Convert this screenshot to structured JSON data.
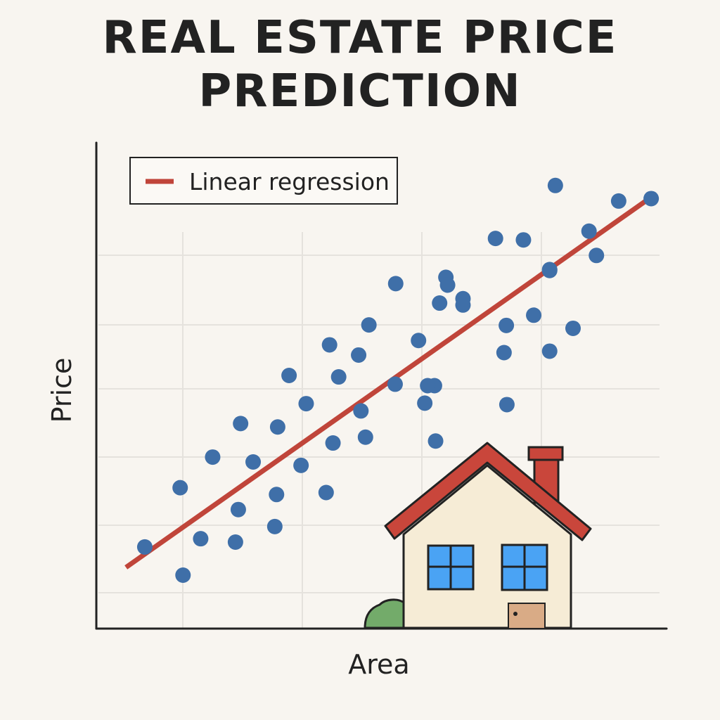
{
  "title": {
    "line1": "REAL ESTATE PRICE",
    "line2": "PREDICTION"
  },
  "chart_data": {
    "type": "scatter",
    "xlabel": "Area",
    "ylabel": "Price",
    "grid": true,
    "legend_position": "top-left",
    "legend": [
      "Linear regression"
    ],
    "colors": {
      "points": "#3f6fa8",
      "regression": "#c0453a",
      "grid": "#e5e2dd",
      "axis": "#222222",
      "house_wall": "#f6ecd6",
      "house_roof": "#c9463b",
      "house_window": "#4aa3f4",
      "house_door": "#d9ab86",
      "bush": "#73ab6a"
    },
    "xlim": [
      0,
      100
    ],
    "ylim": [
      0,
      100
    ],
    "series": [
      {
        "type": "scatter",
        "points": [
          [
            8.5,
            16.8
          ],
          [
            15.2,
            11.0
          ],
          [
            14.7,
            29.0
          ],
          [
            18.3,
            18.5
          ],
          [
            20.4,
            35.3
          ],
          [
            24.4,
            17.8
          ],
          [
            24.9,
            24.5
          ],
          [
            25.3,
            42.2
          ],
          [
            27.5,
            34.3
          ],
          [
            31.3,
            21.0
          ],
          [
            31.6,
            27.6
          ],
          [
            31.8,
            41.5
          ],
          [
            33.8,
            52.1
          ],
          [
            35.9,
            33.6
          ],
          [
            36.8,
            46.3
          ],
          [
            40.3,
            28.0
          ],
          [
            40.9,
            58.4
          ],
          [
            41.5,
            38.2
          ],
          [
            42.5,
            51.8
          ],
          [
            47.2,
            39.4
          ],
          [
            46.4,
            44.8
          ],
          [
            46.0,
            56.3
          ],
          [
            47.8,
            62.5
          ],
          [
            52.5,
            71.0
          ],
          [
            52.4,
            50.3
          ],
          [
            56.5,
            59.3
          ],
          [
            57.6,
            46.4
          ],
          [
            59.5,
            38.6
          ],
          [
            60.2,
            67.0
          ],
          [
            59.3,
            50.0
          ],
          [
            64.3,
            67.9
          ],
          [
            61.3,
            72.3
          ],
          [
            61.6,
            70.7
          ],
          [
            58.1,
            50.0
          ],
          [
            71.5,
            56.8
          ],
          [
            71.9,
            62.4
          ],
          [
            72.0,
            46.1
          ],
          [
            74.9,
            80.0
          ],
          [
            79.5,
            73.7
          ],
          [
            79.5,
            57.1
          ],
          [
            76.7,
            64.5
          ],
          [
            83.6,
            61.8
          ],
          [
            86.4,
            81.8
          ],
          [
            87.7,
            76.8
          ],
          [
            91.6,
            88.0
          ],
          [
            70.0,
            80.3
          ],
          [
            64.3,
            66.6
          ],
          [
            97.3,
            88.5
          ],
          [
            80.5,
            91.2
          ],
          [
            79.5,
            73.9
          ]
        ]
      },
      {
        "name": "Linear regression",
        "type": "line",
        "x": [
          5.2,
          97.3
        ],
        "y": [
          12.6,
          88.8
        ]
      }
    ]
  }
}
